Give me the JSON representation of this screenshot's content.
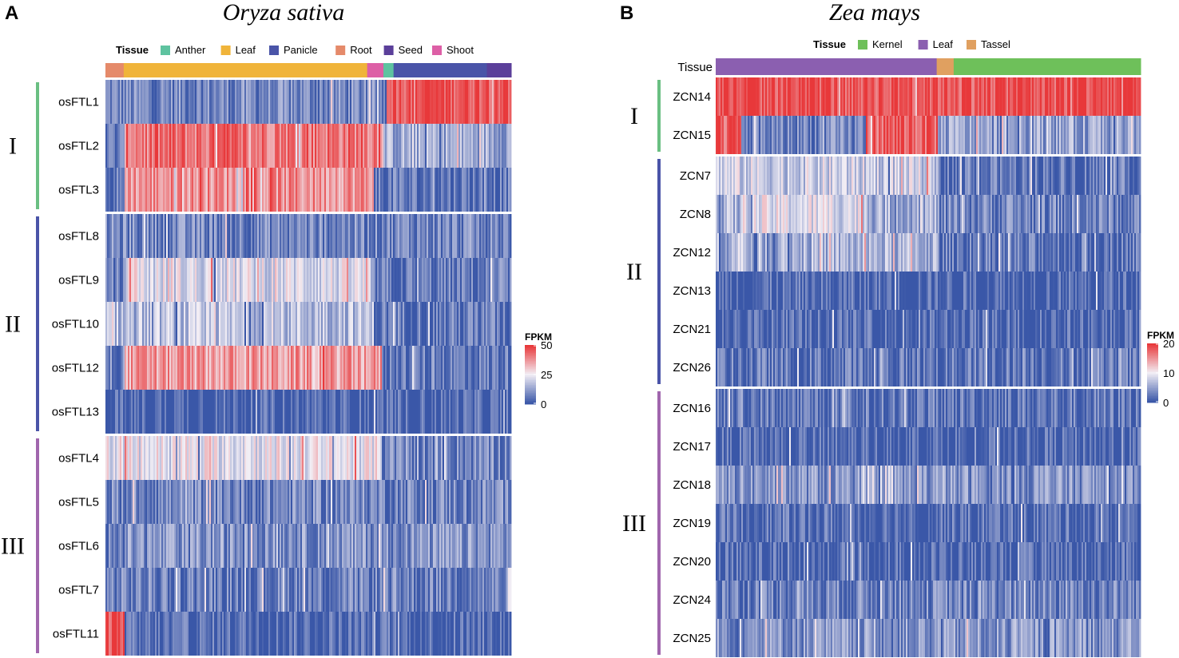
{
  "chart_data": [
    {
      "panel": "A",
      "title": "Oryza sativa",
      "type": "heatmap",
      "annotation_title": "Tissue",
      "tissues": [
        {
          "name": "Anther",
          "color": "#5ec3a0"
        },
        {
          "name": "Leaf",
          "color": "#f0b43a"
        },
        {
          "name": "Panicle",
          "color": "#4a54a8"
        },
        {
          "name": "Root",
          "color": "#e58a6a"
        },
        {
          "name": "Seed",
          "color": "#5b3f9a"
        },
        {
          "name": "Shoot",
          "color": "#dd5fa6"
        }
      ],
      "tissue_bar_fractions": [
        {
          "tissue": "Root",
          "frac": 0.045
        },
        {
          "tissue": "Leaf",
          "frac": 0.6
        },
        {
          "tissue": "Shoot",
          "frac": 0.04
        },
        {
          "tissue": "Anther",
          "frac": 0.025
        },
        {
          "tissue": "Panicle",
          "frac": 0.23
        },
        {
          "tissue": "Seed",
          "frac": 0.06
        }
      ],
      "groups": [
        {
          "label": "I",
          "color": "#6abf82",
          "genes": [
            {
              "name": "osFTL1",
              "segments": [
                [
                  0.69,
                  1.0
                ],
                [
                  0,
                  0.69
                ]
              ],
              "levels": [
                48,
                8
              ]
            },
            {
              "name": "osFTL2",
              "segments": [
                [
                  0.0,
                  0.045
                ],
                [
                  0.045,
                  0.68
                ],
                [
                  0.68,
                  1.0
                ]
              ],
              "levels": [
                5,
                42,
                14
              ]
            },
            {
              "name": "osFTL3",
              "segments": [
                [
                  0.0,
                  0.045
                ],
                [
                  0.045,
                  0.66
                ],
                [
                  0.66,
                  1.0
                ]
              ],
              "levels": [
                5,
                38,
                5
              ]
            }
          ]
        },
        {
          "label": "II",
          "color": "#4a54a8",
          "genes": [
            {
              "name": "osFTL8",
              "segments": [
                [
                  0,
                  1
                ]
              ],
              "levels": [
                8
              ]
            },
            {
              "name": "osFTL9",
              "segments": [
                [
                  0.0,
                  0.045
                ],
                [
                  0.045,
                  0.65
                ],
                [
                  0.65,
                  1.0
                ]
              ],
              "levels": [
                5,
                22,
                5
              ]
            },
            {
              "name": "osFTL10",
              "segments": [
                [
                  0.0,
                  0.66
                ],
                [
                  0.66,
                  1.0
                ]
              ],
              "levels": [
                17,
                6
              ]
            },
            {
              "name": "osFTL12",
              "segments": [
                [
                  0.0,
                  0.045
                ],
                [
                  0.045,
                  0.68
                ],
                [
                  0.68,
                  1.0
                ]
              ],
              "levels": [
                8,
                36,
                6
              ]
            },
            {
              "name": "osFTL13",
              "segments": [
                [
                  0,
                  1
                ]
              ],
              "levels": [
                2
              ]
            }
          ]
        },
        {
          "label": "III",
          "color": "#a066ad",
          "genes": [
            {
              "name": "osFTL4",
              "segments": [
                [
                  0.0,
                  0.68
                ],
                [
                  0.68,
                  1.0
                ]
              ],
              "levels": [
                24,
                8
              ]
            },
            {
              "name": "osFTL5",
              "segments": [
                [
                  0,
                  1
                ]
              ],
              "levels": [
                8
              ]
            },
            {
              "name": "osFTL6",
              "segments": [
                [
                  0,
                  1
                ]
              ],
              "levels": [
                10
              ]
            },
            {
              "name": "osFTL7",
              "segments": [
                [
                  0,
                  1
                ]
              ],
              "levels": [
                7
              ]
            },
            {
              "name": "osFTL11",
              "segments": [
                [
                  0.0,
                  0.045
                ],
                [
                  0.045,
                  1.0
                ]
              ],
              "levels": [
                48,
                3
              ]
            }
          ]
        }
      ],
      "scale": {
        "title": "FPKM",
        "ticks": [
          "50",
          "25",
          "0"
        ],
        "range": [
          0,
          50
        ]
      }
    },
    {
      "panel": "B",
      "title": "Zea mays",
      "type": "heatmap",
      "annotation_title": "Tissue",
      "axis_label": "Tissue",
      "tissues": [
        {
          "name": "Kernel",
          "color": "#6ec05a"
        },
        {
          "name": "Leaf",
          "color": "#8b5fb0"
        },
        {
          "name": "Tassel",
          "color": "#e0a060"
        }
      ],
      "tissue_bar_fractions": [
        {
          "tissue": "Leaf",
          "frac": 0.52
        },
        {
          "tissue": "Tassel",
          "frac": 0.04
        },
        {
          "tissue": "Kernel",
          "frac": 0.44
        }
      ],
      "groups": [
        {
          "label": "I",
          "color": "#6abf82",
          "genes": [
            {
              "name": "ZCN14",
              "segments": [
                [
                  0,
                  1
                ]
              ],
              "levels": [
                19
              ]
            },
            {
              "name": "ZCN15",
              "segments": [
                [
                  0.0,
                  0.06
                ],
                [
                  0.06,
                  0.35
                ],
                [
                  0.35,
                  0.52
                ],
                [
                  0.52,
                  1.0
                ]
              ],
              "levels": [
                18,
                3,
                18,
                5
              ]
            }
          ]
        },
        {
          "label": "II",
          "color": "#4a54a8",
          "genes": [
            {
              "name": "ZCN7",
              "segments": [
                [
                  0.0,
                  0.52
                ],
                [
                  0.52,
                  1.0
                ]
              ],
              "levels": [
                8,
                2
              ]
            },
            {
              "name": "ZCN8",
              "segments": [
                [
                  0.0,
                  0.06
                ],
                [
                  0.06,
                  0.35
                ],
                [
                  0.35,
                  0.52
                ],
                [
                  0.52,
                  1.0
                ]
              ],
              "levels": [
                6,
                9,
                6,
                3
              ]
            },
            {
              "name": "ZCN12",
              "segments": [
                [
                  0.0,
                  0.52
                ],
                [
                  0.52,
                  1.0
                ]
              ],
              "levels": [
                6,
                2
              ]
            },
            {
              "name": "ZCN13",
              "segments": [
                [
                  0,
                  1
                ]
              ],
              "levels": [
                1
              ]
            },
            {
              "name": "ZCN21",
              "segments": [
                [
                  0,
                  1
                ]
              ],
              "levels": [
                1
              ]
            },
            {
              "name": "ZCN26",
              "segments": [
                [
                  0,
                  1
                ]
              ],
              "levels": [
                2
              ]
            }
          ]
        },
        {
          "label": "III",
          "color": "#a066ad",
          "genes": [
            {
              "name": "ZCN16",
              "segments": [
                [
                  0,
                  1
                ]
              ],
              "levels": [
                2
              ]
            },
            {
              "name": "ZCN17",
              "segments": [
                [
                  0,
                  1
                ]
              ],
              "levels": [
                1
              ]
            },
            {
              "name": "ZCN18",
              "segments": [
                [
                  0,
                  1
                ]
              ],
              "levels": [
                4
              ]
            },
            {
              "name": "ZCN19",
              "segments": [
                [
                  0,
                  1
                ]
              ],
              "levels": [
                1.5
              ]
            },
            {
              "name": "ZCN20",
              "segments": [
                [
                  0,
                  1
                ]
              ],
              "levels": [
                1
              ]
            },
            {
              "name": "ZCN24",
              "segments": [
                [
                  0,
                  1
                ]
              ],
              "levels": [
                3
              ]
            },
            {
              "name": "ZCN25",
              "segments": [
                [
                  0,
                  1
                ]
              ],
              "levels": [
                4
              ]
            }
          ]
        }
      ],
      "scale": {
        "title": "FPKM",
        "ticks": [
          "20",
          "10",
          "0"
        ],
        "range": [
          0,
          20
        ]
      }
    }
  ],
  "colors": {
    "low": "#3a57a8",
    "mid": "#f2eef5",
    "high": "#e8383a"
  }
}
